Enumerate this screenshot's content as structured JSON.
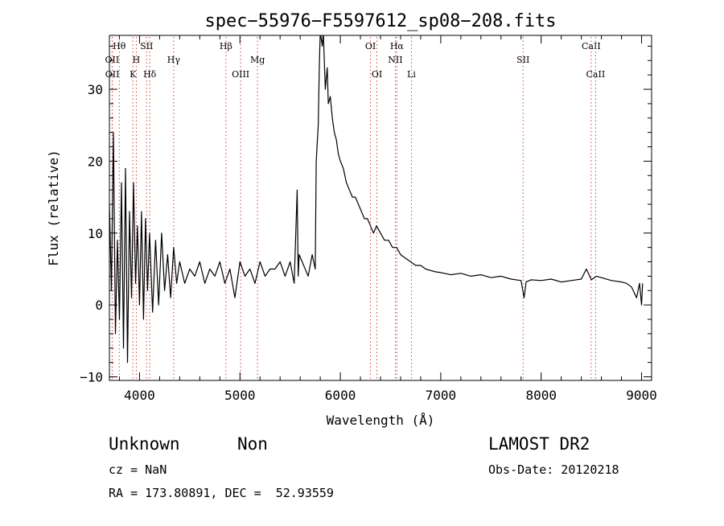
{
  "chart_data": {
    "type": "line",
    "title": "spec−55976−F5597612_sp08−208.fits",
    "xlabel": "Wavelength (Å)",
    "ylabel": "Flux (relative)",
    "xlim": [
      3700,
      9100
    ],
    "ylim": [
      -10.5,
      37.5
    ],
    "x_ticks": [
      4000,
      5000,
      6000,
      7000,
      8000,
      9000
    ],
    "y_ticks": [
      -10,
      0,
      10,
      20,
      30
    ],
    "grid": false,
    "line_color": "#000000",
    "marker_color": "#d04040",
    "series": [
      {
        "x": [
          3700,
          3720,
          3740,
          3760,
          3780,
          3800,
          3820,
          3840,
          3860,
          3880,
          3900,
          3920,
          3940,
          3960,
          3980,
          4000,
          4020,
          4040,
          4060,
          4080,
          4100,
          4130,
          4160,
          4190,
          4220,
          4250,
          4280,
          4310,
          4340,
          4370,
          4400,
          4450,
          4500,
          4550,
          4600,
          4650,
          4700,
          4750,
          4800,
          4850,
          4900,
          4950,
          5000,
          5050,
          5100,
          5150,
          5200,
          5250,
          5300,
          5350,
          5400,
          5450,
          5500,
          5540,
          5570,
          5580,
          5590,
          5620,
          5650,
          5680,
          5720,
          5750,
          5760,
          5780,
          5790,
          5800,
          5820,
          5830,
          5850,
          5870,
          5880,
          5900,
          5920,
          5940,
          5960,
          5980,
          6000,
          6030,
          6060,
          6090,
          6120,
          6150,
          6180,
          6210,
          6240,
          6270,
          6300,
          6330,
          6360,
          6400,
          6440,
          6480,
          6520,
          6560,
          6600,
          6650,
          6700,
          6750,
          6800,
          6850,
          6900,
          6950,
          7000,
          7100,
          7200,
          7300,
          7400,
          7500,
          7600,
          7700,
          7800,
          7830,
          7850,
          7900,
          8000,
          8100,
          8200,
          8300,
          8400,
          8450,
          8500,
          8550,
          8600,
          8700,
          8800,
          8850,
          8900,
          8950,
          8980,
          9000,
          9010
        ],
        "values": [
          14,
          2,
          24,
          -4,
          9,
          -2,
          17,
          -6,
          19,
          -8,
          13,
          1,
          17,
          3,
          11,
          0,
          13,
          -2,
          12,
          2,
          10,
          -1,
          9,
          0,
          10,
          2,
          7,
          1,
          8,
          3,
          6,
          3,
          5,
          4,
          6,
          3,
          5,
          4,
          6,
          3,
          5,
          1,
          6,
          4,
          5,
          3,
          6,
          4,
          5,
          5,
          6,
          4,
          6,
          3,
          16,
          4,
          7,
          6,
          5,
          4,
          7,
          5,
          20,
          25,
          33,
          38,
          36,
          38,
          30,
          33,
          28,
          29,
          26,
          24,
          23,
          21,
          20,
          19,
          17,
          16,
          15,
          15,
          14,
          13,
          12,
          12,
          11,
          10,
          11,
          10,
          9,
          9,
          8,
          8,
          7,
          6.5,
          6,
          5.5,
          5.5,
          5,
          4.8,
          4.6,
          4.5,
          4.2,
          4.4,
          4,
          4.2,
          3.8,
          4,
          3.6,
          3.4,
          1,
          3.2,
          3.5,
          3.4,
          3.6,
          3.2,
          3.4,
          3.6,
          5,
          3.5,
          4,
          3.8,
          3.4,
          3.2,
          3,
          2.5,
          1,
          3,
          0,
          3
        ]
      }
    ],
    "lines": [
      {
        "label": "Hθ",
        "x": 3798,
        "row": 1
      },
      {
        "label": "OII",
        "x": 3727,
        "row": 2
      },
      {
        "label": "OII",
        "x": 3729,
        "row": 3
      },
      {
        "label": "SII",
        "x": 4070,
        "row": 1
      },
      {
        "label": "H",
        "x": 3968,
        "row": 2
      },
      {
        "label": "K",
        "x": 3934,
        "row": 3
      },
      {
        "label": "Hδ",
        "x": 4102,
        "row": 3
      },
      {
        "label": "Hγ",
        "x": 4340,
        "row": 2
      },
      {
        "label": "Hβ",
        "x": 4861,
        "row": 1
      },
      {
        "label": "OIII",
        "x": 5007,
        "row": 3
      },
      {
        "label": "Mg",
        "x": 5175,
        "row": 2
      },
      {
        "label": "OI",
        "x": 6300,
        "row": 1
      },
      {
        "label": "OI",
        "x": 6364,
        "row": 3
      },
      {
        "label": "Hα",
        "x": 6563,
        "row": 1
      },
      {
        "label": "NII",
        "x": 6548,
        "row": 2
      },
      {
        "label": "Li",
        "x": 6708,
        "row": 3
      },
      {
        "label": "SII",
        "x": 7820,
        "row": 2
      },
      {
        "label": "CaII",
        "x": 8498,
        "row": 1
      },
      {
        "label": "CaII",
        "x": 8542,
        "row": 3
      }
    ]
  },
  "footer": {
    "class": "Unknown",
    "subclass": "Non",
    "survey": "LAMOST DR2",
    "cz": "cz = NaN",
    "obs_date": "Obs-Date: 20120218",
    "radec": "RA = 173.80891, DEC =  52.93559"
  }
}
